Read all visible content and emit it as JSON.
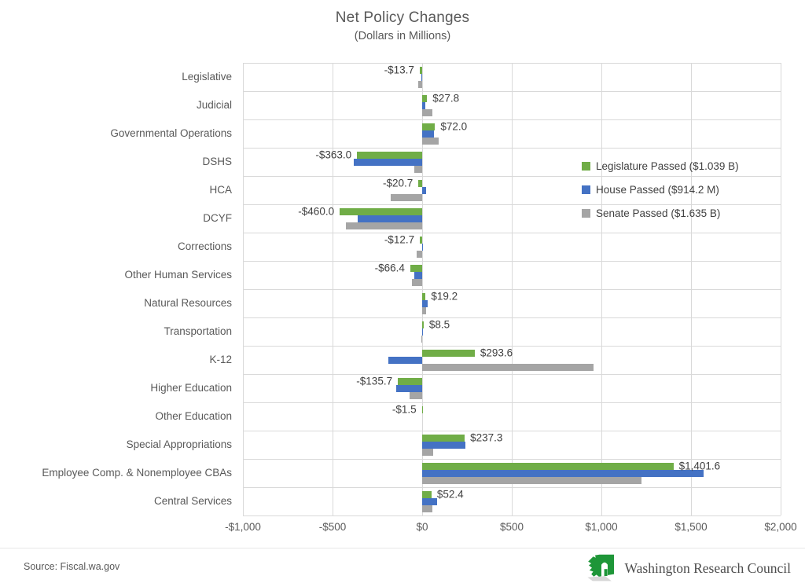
{
  "chart_data": {
    "type": "bar",
    "orientation": "horizontal-grouped",
    "title": "Net Policy Changes",
    "subtitle": "(Dollars in Millions)",
    "categories": [
      "Legislative",
      "Judicial",
      "Governmental Operations",
      "DSHS",
      "HCA",
      "DCYF",
      "Corrections",
      "Other Human Services",
      "Natural Resources",
      "Transportation",
      "K-12",
      "Higher Education",
      "Other Education",
      "Special Appropriations",
      "Employee Comp. & Nonemployee CBAs",
      "Central Services"
    ],
    "series": [
      {
        "key": "legislature-passed",
        "name": "Legislature Passed ($1.039 B)",
        "color": "#70AD47",
        "values": [
          -13.7,
          27.8,
          72.0,
          -363.0,
          -20.7,
          -460.0,
          -12.7,
          -66.4,
          19.2,
          8.5,
          293.6,
          -135.7,
          -1.5,
          237.3,
          1401.6,
          52.4
        ]
      },
      {
        "key": "house-passed",
        "name": "House Passed ($914.2 M)",
        "color": "#4472C4",
        "values": [
          -5,
          18,
          64,
          -380,
          20,
          -358,
          5,
          -45,
          30,
          5,
          -190,
          -145,
          0,
          240,
          1570,
          85
        ]
      },
      {
        "key": "senate-passed",
        "name": "Senate Passed ($1.635 B)",
        "color": "#A5A5A5",
        "values": [
          -20,
          55,
          90,
          -45,
          -175,
          -425,
          -30,
          -55,
          20,
          -5,
          955,
          -70,
          0,
          60,
          1225,
          55
        ]
      }
    ],
    "data_labels": [
      "-$13.7",
      "$27.8",
      "$72.0",
      "-$363.0",
      "-$20.7",
      "-$460.0",
      "-$12.7",
      "-$66.4",
      "$19.2",
      "$8.5",
      "$293.6",
      "-$135.7",
      "-$1.5",
      "$237.3",
      "$1,401.6",
      "$52.4"
    ],
    "data_labels_series": "legislature-passed",
    "xlim": [
      -1000,
      2000
    ],
    "xticks": [
      {
        "value": -1000,
        "label": "-$1,000"
      },
      {
        "value": -500,
        "label": "-$500"
      },
      {
        "value": 0,
        "label": "$0"
      },
      {
        "value": 500,
        "label": "$500"
      },
      {
        "value": 1000,
        "label": "$1,000"
      },
      {
        "value": 1500,
        "label": "$1,500"
      },
      {
        "value": 2000,
        "label": "$2,000"
      }
    ],
    "grid": true,
    "legend_position": "inside-right"
  },
  "footer": {
    "source": "Source: Fiscal.wa.gov",
    "logo_text": "Washington Research Council"
  },
  "colors": {
    "gridline": "#d9d9d9",
    "axis_text": "#595959",
    "data_label_text": "#404040",
    "logo_green": "#1e9638",
    "logo_shadow": "#c9c9c9"
  }
}
